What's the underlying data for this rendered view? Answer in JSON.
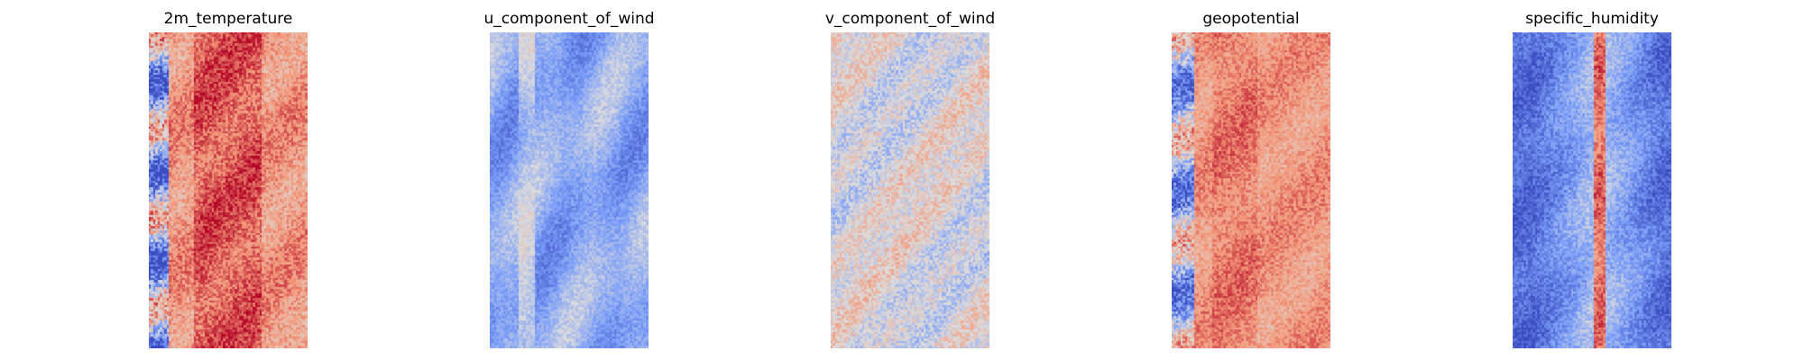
{
  "chart_data": [
    {
      "type": "heatmap",
      "title": "2m_temperature",
      "xlabel": "",
      "ylabel": "",
      "colormap": "coolwarm",
      "grid": false,
      "axes_visible": false,
      "profile": "warm core in left-center band, lighter salmon on the right, cool blue streaks along the left edge"
    },
    {
      "type": "heatmap",
      "title": "u_component_of_wind",
      "xlabel": "",
      "ylabel": "",
      "colormap": "coolwarm",
      "grid": false,
      "axes_visible": false,
      "profile": "mostly light blue field with darker blue patches, a thin warm streak near the left edge"
    },
    {
      "type": "heatmap",
      "title": "v_component_of_wind",
      "xlabel": "",
      "ylabel": "",
      "colormap": "coolwarm",
      "grid": false,
      "axes_visible": false,
      "profile": "near-neutral gray field with scattered blue and red speckles"
    },
    {
      "type": "heatmap",
      "title": "geopotential",
      "xlabel": "",
      "ylabel": "",
      "colormap": "coolwarm",
      "grid": false,
      "axes_visible": false,
      "profile": "mostly salmon field with a darker red center band and blue speckles on the left edge"
    },
    {
      "type": "heatmap",
      "title": "specific_humidity",
      "xlabel": "",
      "ylabel": "",
      "colormap": "coolwarm",
      "grid": false,
      "axes_visible": false,
      "profile": "blue field, lighter blue toward the center with a narrow warm stripe in the middle"
    }
  ]
}
